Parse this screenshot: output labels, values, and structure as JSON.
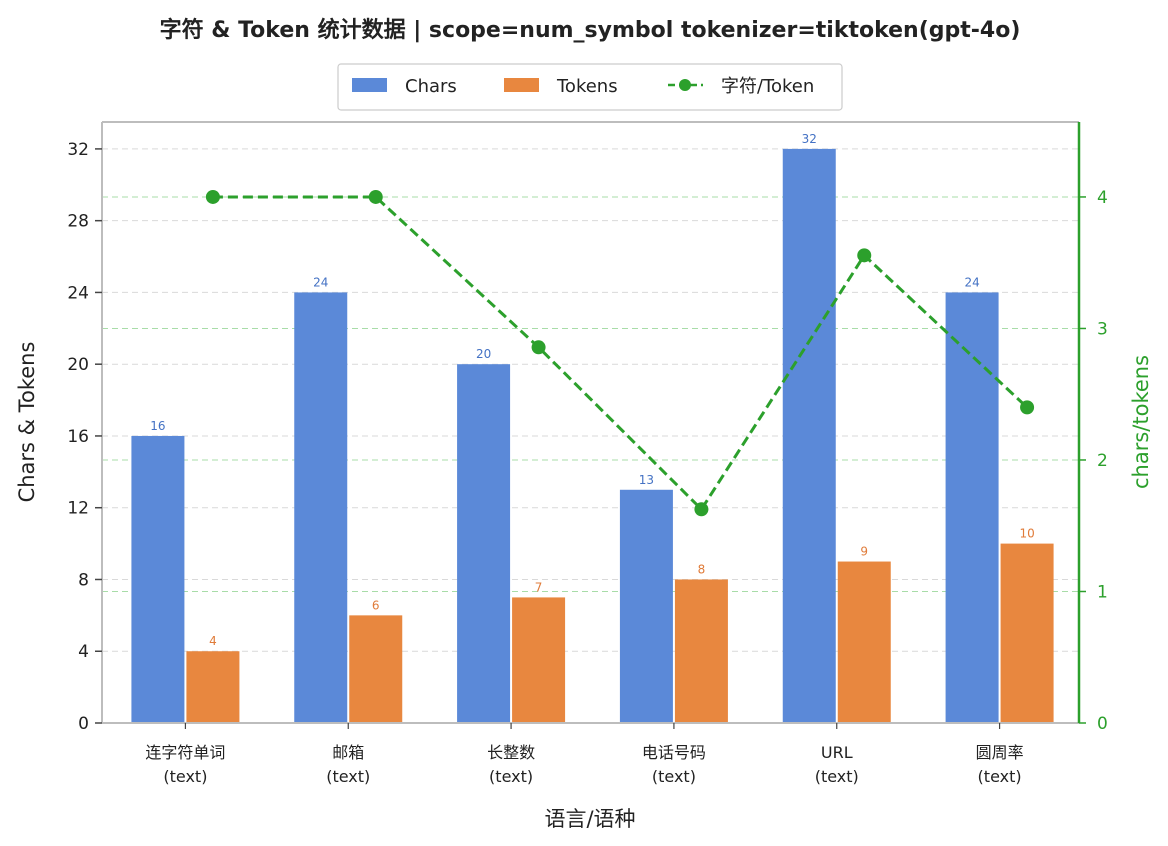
{
  "chart_data": {
    "type": "bar",
    "title": "字符 & Token 统计数据 | scope=num_symbol tokenizer=tiktoken(gpt-4o)",
    "xlabel": "语言/语种",
    "ylabel": "Chars & Tokens",
    "y2label": "chars/tokens",
    "categories": [
      [
        "连字符单词",
        "(text)"
      ],
      [
        "邮箱",
        "(text)"
      ],
      [
        "长整数",
        "(text)"
      ],
      [
        "电话号码",
        "(text)"
      ],
      [
        "URL",
        "(text)"
      ],
      [
        "圆周率",
        "(text)"
      ]
    ],
    "series": [
      {
        "name": "Chars",
        "kind": "bar",
        "axis": "left",
        "color": "#5b89d8",
        "values": [
          16,
          24,
          20,
          13,
          32,
          24
        ]
      },
      {
        "name": "Tokens",
        "kind": "bar",
        "axis": "left",
        "color": "#e8873f",
        "values": [
          4,
          6,
          7,
          8,
          9,
          10
        ]
      },
      {
        "name": "字符/Token",
        "kind": "line",
        "axis": "right",
        "color": "#2ca02c",
        "values": [
          4.0,
          4.0,
          2.857,
          1.625,
          3.556,
          2.4
        ]
      }
    ],
    "ylim": [
      0,
      33.5
    ],
    "yticks": [
      0,
      4,
      8,
      12,
      16,
      20,
      24,
      28,
      32
    ],
    "y2lim": [
      0,
      4.57
    ],
    "y2ticks": [
      0,
      1,
      2,
      3,
      4
    ],
    "legend": "top-center",
    "grid": true
  }
}
